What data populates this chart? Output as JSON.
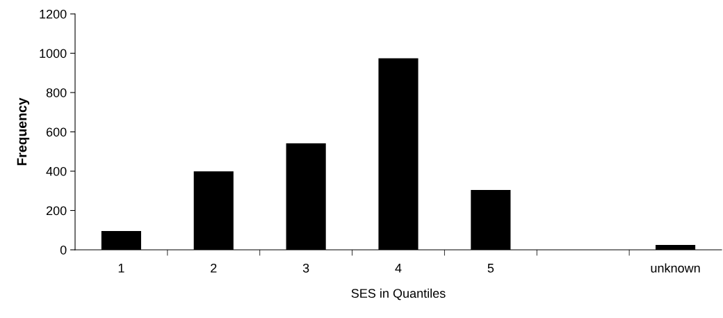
{
  "chart_data": {
    "type": "bar",
    "xlabel": "SES in Quantiles",
    "ylabel": "Frequency",
    "categories": [
      "1",
      "2",
      "3",
      "4",
      "5",
      null,
      "unknown"
    ],
    "values": [
      96,
      399,
      542,
      974,
      304,
      0,
      25
    ],
    "color": "#000000",
    "ylim": [
      0,
      1200
    ],
    "yticks": [
      0,
      200,
      400,
      600,
      800,
      1000,
      1200
    ],
    "grid": false,
    "legend": false
  }
}
